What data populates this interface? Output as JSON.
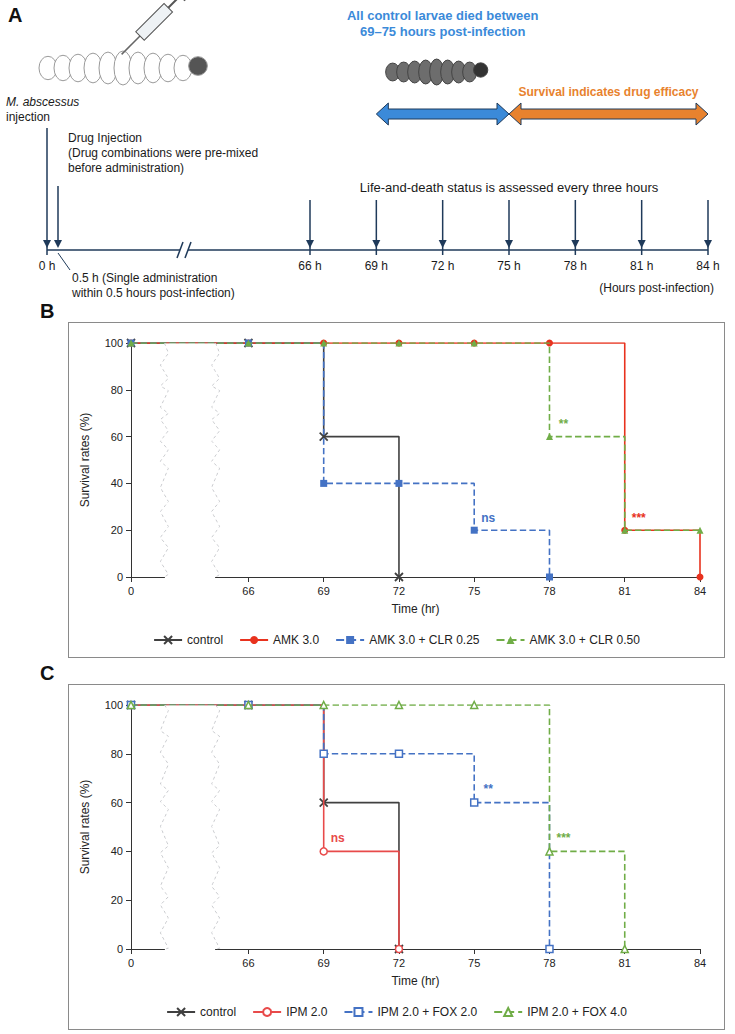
{
  "panel_a": {
    "panel_label": "A",
    "infection": {
      "hour": 0,
      "lines": [
        "M. abscessus",
        "injection"
      ]
    },
    "drug_injection": {
      "hour": 0.5,
      "lines": [
        "Drug Injection",
        "(Drug combinations were pre-mixed",
        "before administration)"
      ]
    },
    "drug_note": {
      "hour": 0.5,
      "lines": [
        "0.5 h (Single administration",
        "within 0.5 hours post-infection)"
      ]
    },
    "assessment": {
      "text": "Life-and-death status is assessed every three hours"
    },
    "spans": [
      {
        "from": 69,
        "to": 75,
        "color": "#3b8ad9",
        "lines": [
          "All control larvae died between",
          "69–75 hours post-infection"
        ]
      },
      {
        "from": 75,
        "to": 84,
        "color": "#e8822e",
        "lines": [
          "Survival indicates drug efficacy"
        ]
      }
    ],
    "timeline": {
      "ticks": [
        {
          "value": 0,
          "label": "0 h"
        },
        {
          "value": 66,
          "label": "66 h"
        },
        {
          "value": 69,
          "label": "69 h"
        },
        {
          "value": 72,
          "label": "72 h"
        },
        {
          "value": 75,
          "label": "75 h"
        },
        {
          "value": 78,
          "label": "78 h"
        },
        {
          "value": 81,
          "label": "81 h"
        },
        {
          "value": 84,
          "label": "84 h"
        }
      ],
      "axis_label": "(Hours post-infection)"
    }
  },
  "chart_data": [
    {
      "type": "step",
      "panel_label": "B",
      "x_label": "Time (hr)",
      "y_label": "Survival rates (%)",
      "x": [
        0,
        66,
        69,
        72,
        75,
        78,
        81,
        84
      ],
      "xlim": [
        0,
        84
      ],
      "xticks": [
        0,
        66,
        69,
        72,
        75,
        78,
        81,
        84
      ],
      "ylim": [
        0,
        100
      ],
      "yticks": [
        0,
        20,
        40,
        60,
        80,
        100
      ],
      "grid": false,
      "legend": "bottom",
      "series": [
        {
          "name": "control",
          "color": "#404040",
          "marker": "x",
          "line_style": "solid",
          "values": [
            100,
            100,
            60,
            0,
            null,
            null,
            null,
            null
          ]
        },
        {
          "name": "AMK 3.0",
          "color": "#e8321e",
          "marker": "circle",
          "line_style": "solid",
          "values": [
            100,
            100,
            100,
            100,
            100,
            100,
            20,
            0
          ],
          "annotation": {
            "text": "***",
            "x": 81
          }
        },
        {
          "name": "AMK 3.0 + CLR 0.25",
          "color": "#4472c4",
          "marker": "square",
          "line_style": "dashed",
          "values": [
            100,
            100,
            40,
            40,
            20,
            0,
            null,
            null
          ],
          "annotation": {
            "text": "ns",
            "x": 75
          }
        },
        {
          "name": "AMK 3.0 + CLR 0.50",
          "color": "#70ad47",
          "marker": "triangle",
          "line_style": "dashed",
          "values": [
            100,
            100,
            100,
            100,
            100,
            60,
            20,
            20
          ],
          "annotation": {
            "text": "**",
            "x": 78
          }
        }
      ]
    },
    {
      "type": "step",
      "panel_label": "C",
      "x_label": "Time (hr)",
      "y_label": "Survival rates (%)",
      "x": [
        0,
        66,
        69,
        72,
        75,
        78,
        81,
        84
      ],
      "xlim": [
        0,
        84
      ],
      "xticks": [
        0,
        66,
        69,
        72,
        75,
        78,
        81,
        84
      ],
      "ylim": [
        0,
        100
      ],
      "yticks": [
        0,
        20,
        40,
        60,
        80,
        100
      ],
      "grid": false,
      "legend": "bottom",
      "series": [
        {
          "name": "control",
          "color": "#404040",
          "marker": "x",
          "line_style": "solid",
          "values": [
            100,
            100,
            60,
            0,
            null,
            null,
            null,
            null
          ]
        },
        {
          "name": "IPM 2.0",
          "color": "#e84a4a",
          "marker": "open circle",
          "line_style": "solid",
          "values": [
            100,
            100,
            40,
            0,
            null,
            null,
            null,
            null
          ],
          "annotation": {
            "text": "ns",
            "x": 69
          }
        },
        {
          "name": "IPM 2.0 + FOX 2.0",
          "color": "#4472c4",
          "marker": "open square",
          "line_style": "dashed",
          "values": [
            100,
            100,
            80,
            80,
            60,
            0,
            null,
            null
          ],
          "annotation": {
            "text": "**",
            "x": 75
          }
        },
        {
          "name": "IPM 2.0 + FOX 4.0",
          "color": "#70ad47",
          "marker": "open triangle",
          "line_style": "dashed",
          "values": [
            100,
            100,
            100,
            100,
            100,
            40,
            0,
            null
          ],
          "annotation": {
            "text": "***",
            "x": 78
          }
        }
      ]
    }
  ]
}
